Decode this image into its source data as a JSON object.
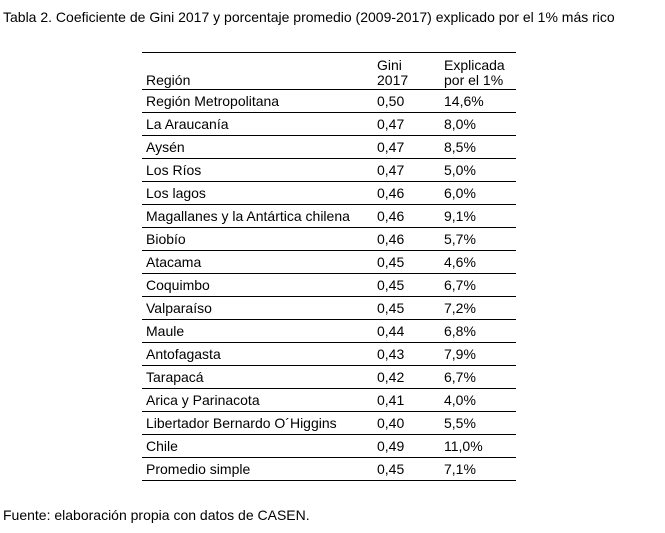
{
  "caption": "Tabla 2. Coeficiente de Gini 2017 y porcentaje promedio (2009-2017) explicado por el 1% más rico",
  "table": {
    "headers": {
      "region": "Región",
      "gini_line1": "Gini",
      "gini_line2": "2017",
      "explicada_line1": "Explicada",
      "explicada_line2": "por el 1%"
    },
    "rows": [
      {
        "region": "Región Metropolitana",
        "gini": "0,50",
        "explicada": "14,6%"
      },
      {
        "region": "La Araucanía",
        "gini": "0,47",
        "explicada": "8,0%"
      },
      {
        "region": "Aysén",
        "gini": "0,47",
        "explicada": "8,5%"
      },
      {
        "region": "Los Ríos",
        "gini": "0,47",
        "explicada": "5,0%"
      },
      {
        "region": "Los lagos",
        "gini": "0,46",
        "explicada": "6,0%"
      },
      {
        "region": "Magallanes y la Antártica chilena",
        "gini": "0,46",
        "explicada": "9,1%"
      },
      {
        "region": "Biobío",
        "gini": "0,46",
        "explicada": "5,7%"
      },
      {
        "region": "Atacama",
        "gini": "0,45",
        "explicada": "4,6%"
      },
      {
        "region": "Coquimbo",
        "gini": "0,45",
        "explicada": "6,7%"
      },
      {
        "region": "Valparaíso",
        "gini": "0,45",
        "explicada": "7,2%"
      },
      {
        "region": "Maule",
        "gini": "0,44",
        "explicada": "6,8%"
      },
      {
        "region": "Antofagasta",
        "gini": "0,43",
        "explicada": "7,9%"
      },
      {
        "region": "Tarapacá",
        "gini": "0,42",
        "explicada": "6,7%"
      },
      {
        "region": "Arica y Parinacota",
        "gini": "0,41",
        "explicada": "4,0%"
      },
      {
        "region": "Libertador Bernardo O´Higgins",
        "gini": "0,40",
        "explicada": "5,5%"
      },
      {
        "region": "Chile",
        "gini": "0,49",
        "explicada": "11,0%"
      },
      {
        "region": "Promedio simple",
        "gini": "0,45",
        "explicada": "7,1%"
      }
    ]
  },
  "source": "Fuente: elaboración propia con datos de CASEN."
}
